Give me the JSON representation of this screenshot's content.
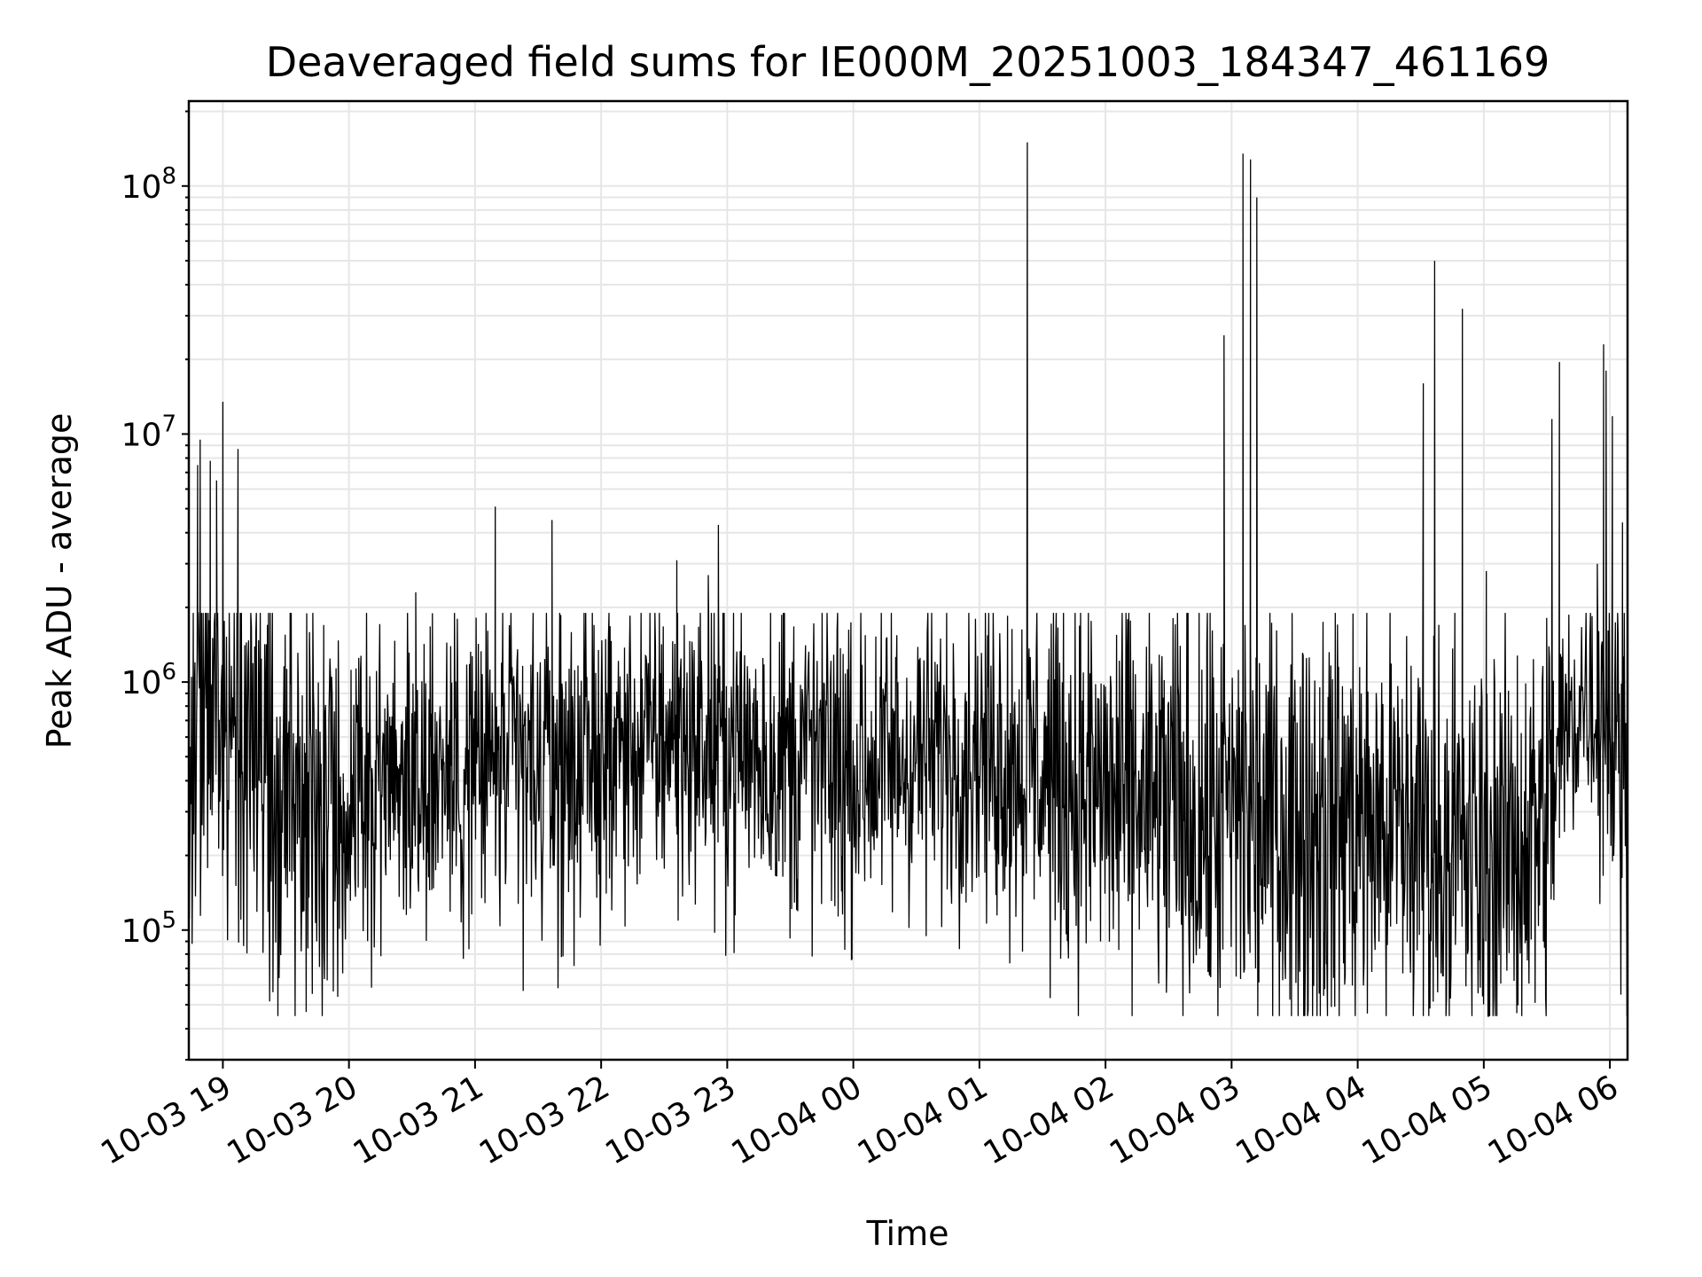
{
  "chart_data": {
    "type": "line",
    "title": "Deaveraged field sums for IE000M_20251003_184347_461169",
    "xlabel": "Time",
    "ylabel": "Peak ADU - average",
    "yscale": "log",
    "ylim": [
      30000,
      220000000
    ],
    "xlim_hours": [
      -0.27,
      11.14
    ],
    "grid": true,
    "line_color": "#000000",
    "grid_color": "#e6e6e6",
    "x_ticks": [
      {
        "hour": 0,
        "label": "10-03 19"
      },
      {
        "hour": 1,
        "label": "10-03 20"
      },
      {
        "hour": 2,
        "label": "10-03 21"
      },
      {
        "hour": 3,
        "label": "10-03 22"
      },
      {
        "hour": 4,
        "label": "10-03 23"
      },
      {
        "hour": 5,
        "label": "10-04 00"
      },
      {
        "hour": 6,
        "label": "10-04 01"
      },
      {
        "hour": 7,
        "label": "10-04 02"
      },
      {
        "hour": 8,
        "label": "10-04 03"
      },
      {
        "hour": 9,
        "label": "10-04 04"
      },
      {
        "hour": 10,
        "label": "10-04 05"
      },
      {
        "hour": 11,
        "label": "10-04 06"
      }
    ],
    "y_ticks": [
      {
        "value": 100000,
        "base": "10",
        "exp": "5"
      },
      {
        "value": 1000000,
        "base": "10",
        "exp": "6"
      },
      {
        "value": 10000000,
        "base": "10",
        "exp": "7"
      },
      {
        "value": 100000000,
        "base": "10",
        "exp": "8"
      }
    ],
    "baseline": {
      "hours": [
        -0.27,
        0.0,
        0.5,
        1.0,
        1.5,
        2.0,
        2.5,
        3.0,
        3.5,
        4.0,
        4.5,
        5.0,
        5.5,
        6.0,
        6.5,
        7.0,
        7.5,
        8.0,
        8.5,
        9.0,
        9.5,
        10.0,
        10.5,
        10.8,
        11.0,
        11.14
      ],
      "median": [
        800000,
        700000,
        300000,
        320000,
        450000,
        450000,
        420000,
        500000,
        600000,
        550000,
        500000,
        450000,
        500000,
        550000,
        450000,
        350000,
        300000,
        280000,
        280000,
        280000,
        250000,
        180000,
        280000,
        900000,
        800000,
        300000
      ],
      "spread_decades": [
        0.55,
        0.6,
        0.6,
        0.55,
        0.5,
        0.5,
        0.5,
        0.45,
        0.45,
        0.45,
        0.5,
        0.5,
        0.45,
        0.45,
        0.55,
        0.6,
        0.65,
        0.65,
        0.65,
        0.65,
        0.65,
        0.6,
        0.6,
        0.3,
        0.6,
        0.6
      ]
    },
    "spikes": [
      {
        "hour": -0.2,
        "value": 7500000
      },
      {
        "hour": -0.18,
        "value": 9500000
      },
      {
        "hour": -0.1,
        "value": 7800000
      },
      {
        "hour": -0.05,
        "value": 6500000
      },
      {
        "hour": 0.0,
        "value": 13500000
      },
      {
        "hour": 0.12,
        "value": 8700000
      },
      {
        "hour": 0.8,
        "value": 1700000
      },
      {
        "hour": 1.53,
        "value": 2300000
      },
      {
        "hour": 2.16,
        "value": 5100000
      },
      {
        "hour": 2.61,
        "value": 4500000
      },
      {
        "hour": 3.6,
        "value": 3100000
      },
      {
        "hour": 3.85,
        "value": 2700000
      },
      {
        "hour": 3.93,
        "value": 4300000
      },
      {
        "hour": 6.38,
        "value": 150000000
      },
      {
        "hour": 7.94,
        "value": 25000000
      },
      {
        "hour": 8.09,
        "value": 135000000
      },
      {
        "hour": 8.15,
        "value": 128000000
      },
      {
        "hour": 8.2,
        "value": 90000000
      },
      {
        "hour": 9.52,
        "value": 16000000
      },
      {
        "hour": 9.61,
        "value": 50000000
      },
      {
        "hour": 9.83,
        "value": 32000000
      },
      {
        "hour": 10.54,
        "value": 11500000
      },
      {
        "hour": 10.6,
        "value": 19500000
      },
      {
        "hour": 10.95,
        "value": 23000000
      },
      {
        "hour": 10.97,
        "value": 18000000
      },
      {
        "hour": 11.02,
        "value": 11800000
      },
      {
        "hour": 10.02,
        "value": 2800000
      },
      {
        "hour": 10.9,
        "value": 3000000
      },
      {
        "hour": 11.1,
        "value": 4400000
      }
    ]
  }
}
